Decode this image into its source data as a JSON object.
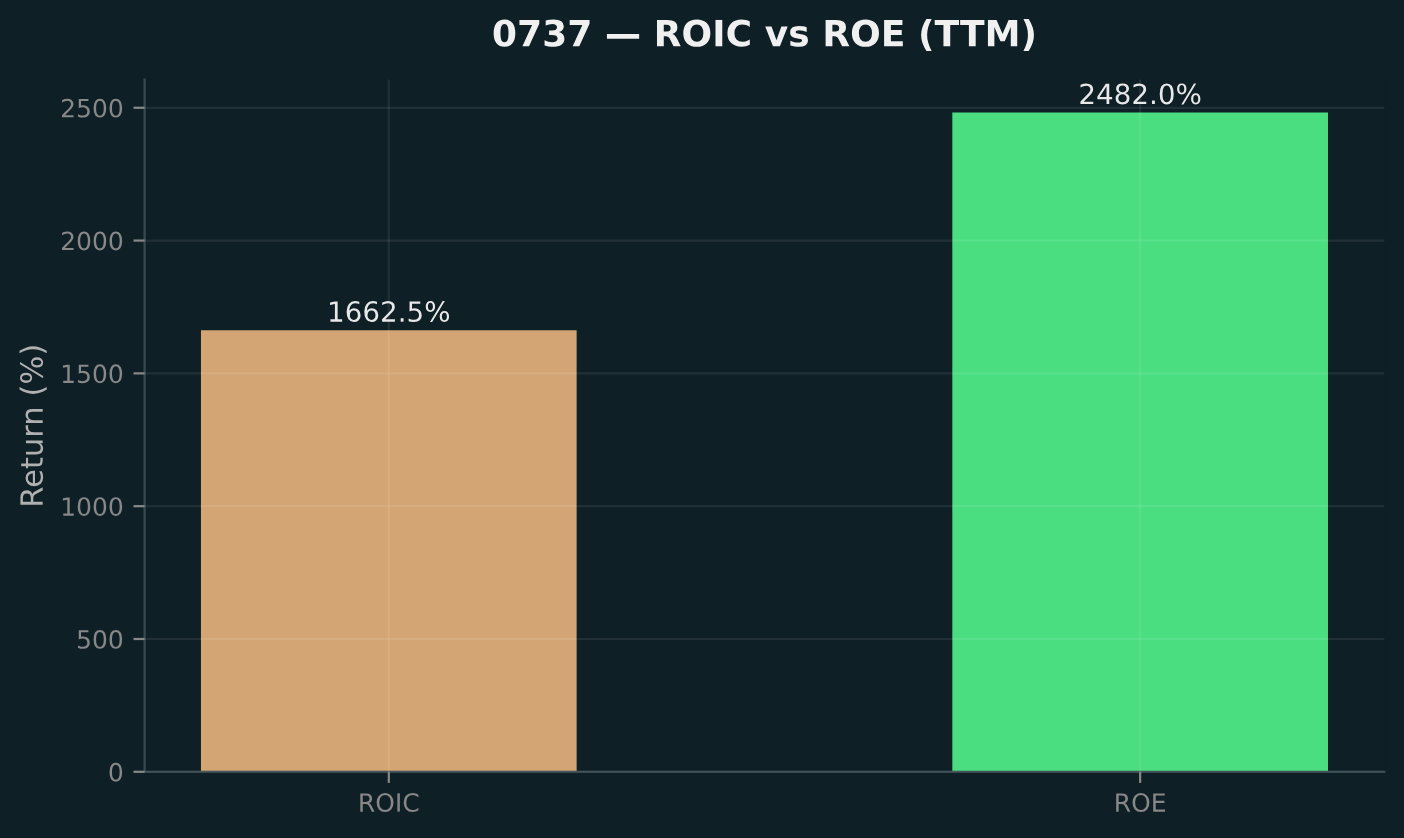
{
  "chart_data": {
    "type": "bar",
    "title": "0737 — ROIC vs ROE (TTM)",
    "ylabel": "Return (%)",
    "categories": [
      "ROIC",
      "ROE"
    ],
    "values": [
      1662.5,
      2482.0
    ],
    "colors": [
      "#d4a574",
      "#4ade80"
    ],
    "value_labels": [
      "1662.5%",
      "2482.0%"
    ],
    "ylim": [
      0,
      2606
    ],
    "yticks": [
      0,
      500,
      1000,
      1500,
      2000,
      2500
    ],
    "grid": true,
    "legend": false
  }
}
